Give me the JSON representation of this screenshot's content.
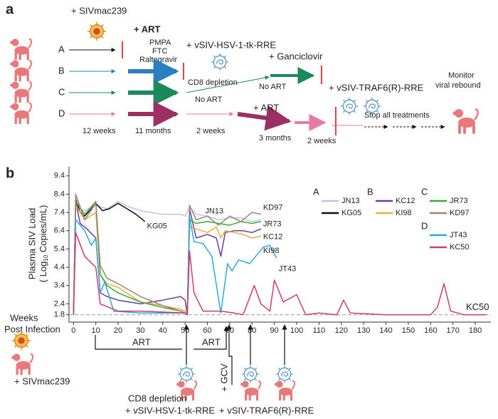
{
  "panel_labels": [
    "a",
    "b"
  ],
  "panel_a": {
    "infection": "+ SIVmac239",
    "groups": [
      "A",
      "B",
      "C",
      "D"
    ],
    "art": "+ ART",
    "art_drugs": [
      "PMPA",
      "FTC",
      "Raltegravir"
    ],
    "vector1": "+ vSIV-HSV-1-tk-RRE",
    "cd8": "CD8 depletion",
    "no_art_1": "No ART",
    "ganciclovir": "+ Ganciclovir",
    "no_art_2": "No ART",
    "art_2": "+ ART",
    "vector2": "+ vSIV-TRAF6(R)-RRE",
    "stop": "Stop all treatments",
    "monitor": [
      "Monitor",
      "viral rebound"
    ],
    "durations": [
      "12 weeks",
      "11 months",
      "2 weeks",
      "3 months",
      "2 weeks"
    ]
  },
  "chart_data": {
    "type": "line",
    "y_label": [
      "Plasma SIV Load",
      "( Log",
      "10",
      " Copies/mL)"
    ],
    "x_label": [
      "Weeks",
      "Post Infection"
    ],
    "xlim": [
      -2,
      187
    ],
    "ylim": [
      1.4,
      9.9
    ],
    "xticks": [
      0,
      10,
      20,
      30,
      40,
      50,
      60,
      70,
      80,
      90,
      100,
      110,
      120,
      130,
      140,
      150,
      160,
      170,
      180
    ],
    "yticks": [
      1.8,
      2.4,
      3.4,
      4.4,
      5.4,
      6.4,
      7.4,
      8.4,
      9.4
    ],
    "threshold": 1.8,
    "legend_groups": [
      "A",
      "B",
      "C",
      "D"
    ],
    "series": [
      {
        "name": "JN13",
        "color": "#c3c2e8",
        "x": [
          0,
          1,
          3,
          5,
          10,
          15,
          20,
          25,
          30,
          40,
          48,
          50,
          52,
          55,
          60,
          65,
          70,
          75,
          80,
          84
        ],
        "values": [
          1.8,
          8.2,
          7.6,
          7.5,
          7.8,
          7.6,
          8.0,
          7.7,
          7.5,
          7.3,
          7.3,
          7.2,
          7.7,
          7.3,
          7.2,
          7.0,
          7.1,
          7.1,
          6.9,
          7.0
        ]
      },
      {
        "name": "KG05",
        "color": "#111111",
        "x": [
          0,
          1,
          3,
          5,
          8,
          10,
          13,
          16,
          20,
          24,
          28,
          32
        ],
        "values": [
          1.8,
          8.1,
          7.4,
          7.2,
          7.6,
          7.9,
          7.5,
          7.6,
          7.9,
          7.6,
          7.3,
          6.9
        ]
      },
      {
        "name": "KC12",
        "color": "#6a3d9a",
        "x": [
          0,
          1,
          3,
          6,
          10,
          12,
          15,
          20,
          30,
          40,
          48,
          50,
          51,
          52,
          55,
          60,
          64,
          66,
          68,
          72,
          76,
          80,
          84
        ],
        "values": [
          1.8,
          8.0,
          6.8,
          6.5,
          6.0,
          3.0,
          2.8,
          2.6,
          2.4,
          2.6,
          2.8,
          2.6,
          1.8,
          7.6,
          6.0,
          6.2,
          6.0,
          5.0,
          6.3,
          6.4,
          6.4,
          6.3,
          6.5
        ]
      },
      {
        "name": "KI98",
        "color": "#f2a93b",
        "x": [
          0,
          1,
          5,
          10,
          12,
          15,
          20,
          30,
          40,
          48,
          50,
          51,
          52,
          55,
          60,
          64,
          66,
          68,
          72,
          76,
          80,
          84
        ],
        "values": [
          1.8,
          7.8,
          7.0,
          7.4,
          4.0,
          3.5,
          3.3,
          2.5,
          2.3,
          2.1,
          2.0,
          1.8,
          6.6,
          6.5,
          6.3,
          6.6,
          6.0,
          6.4,
          6.3,
          6.2,
          6.0,
          6.1
        ]
      },
      {
        "name": "JR73",
        "color": "#3aaa35",
        "x": [
          0,
          1,
          5,
          10,
          12,
          15,
          20,
          30,
          40,
          48,
          50,
          51,
          52,
          55,
          60,
          65,
          70,
          75,
          80,
          84
        ],
        "values": [
          1.8,
          8.0,
          7.3,
          8.0,
          4.0,
          3.4,
          3.0,
          2.5,
          2.2,
          2.0,
          1.9,
          1.8,
          7.0,
          6.8,
          6.9,
          6.8,
          6.7,
          6.9,
          6.8,
          6.9
        ]
      },
      {
        "name": "KD97",
        "color": "#a08272",
        "x": [
          0,
          1,
          5,
          10,
          12,
          15,
          20,
          30,
          40,
          48,
          50,
          51,
          52,
          55,
          60,
          65,
          70,
          75,
          80,
          84
        ],
        "values": [
          1.8,
          8.4,
          7.0,
          7.9,
          4.5,
          3.8,
          3.5,
          2.8,
          2.3,
          2.0,
          1.9,
          1.8,
          7.8,
          7.0,
          7.2,
          6.7,
          7.2,
          6.9,
          7.4,
          7.3
        ]
      },
      {
        "name": "JT43",
        "color": "#2aa9df",
        "x": [
          0,
          1,
          5,
          8,
          10,
          12,
          14,
          18,
          30,
          50,
          51,
          52,
          54,
          58,
          62,
          66,
          69,
          71,
          74,
          79,
          85,
          88,
          91
        ],
        "values": [
          1.8,
          7.0,
          6.4,
          5.6,
          6.0,
          3.0,
          3.6,
          2.0,
          1.9,
          1.9,
          1.8,
          7.2,
          5.8,
          5.7,
          5.0,
          1.9,
          4.6,
          4.2,
          4.8,
          4.6,
          5.5,
          5.6,
          4.9
        ]
      },
      {
        "name": "KC50",
        "color": "#d13a6e",
        "x": [
          0,
          1,
          5,
          10,
          12,
          20,
          30,
          50,
          51,
          52,
          54,
          58,
          66,
          72,
          76,
          81,
          84,
          88,
          90,
          94,
          100,
          104,
          110,
          118,
          121,
          124,
          140,
          160,
          163,
          166,
          169,
          175,
          185
        ],
        "values": [
          1.8,
          6.3,
          5.0,
          4.4,
          2.4,
          2.0,
          2.0,
          1.9,
          1.8,
          5.3,
          3.0,
          2.0,
          2.0,
          1.9,
          1.8,
          3.4,
          2.4,
          2.0,
          3.7,
          2.5,
          2.9,
          1.8,
          1.9,
          1.8,
          2.6,
          1.9,
          1.8,
          1.8,
          2.2,
          3.5,
          2.0,
          1.8,
          1.8
        ]
      }
    ],
    "annotations": {
      "art": [
        "ART",
        "ART"
      ],
      "gcv": "+ GCV",
      "infection": "+ SIVmac239",
      "cd8": "CD8 depletion",
      "vector1": "+ vSIV-HSV-1-tk-RRE",
      "vector2": "+ vSIV-TRAF6(R)-RRE"
    }
  }
}
